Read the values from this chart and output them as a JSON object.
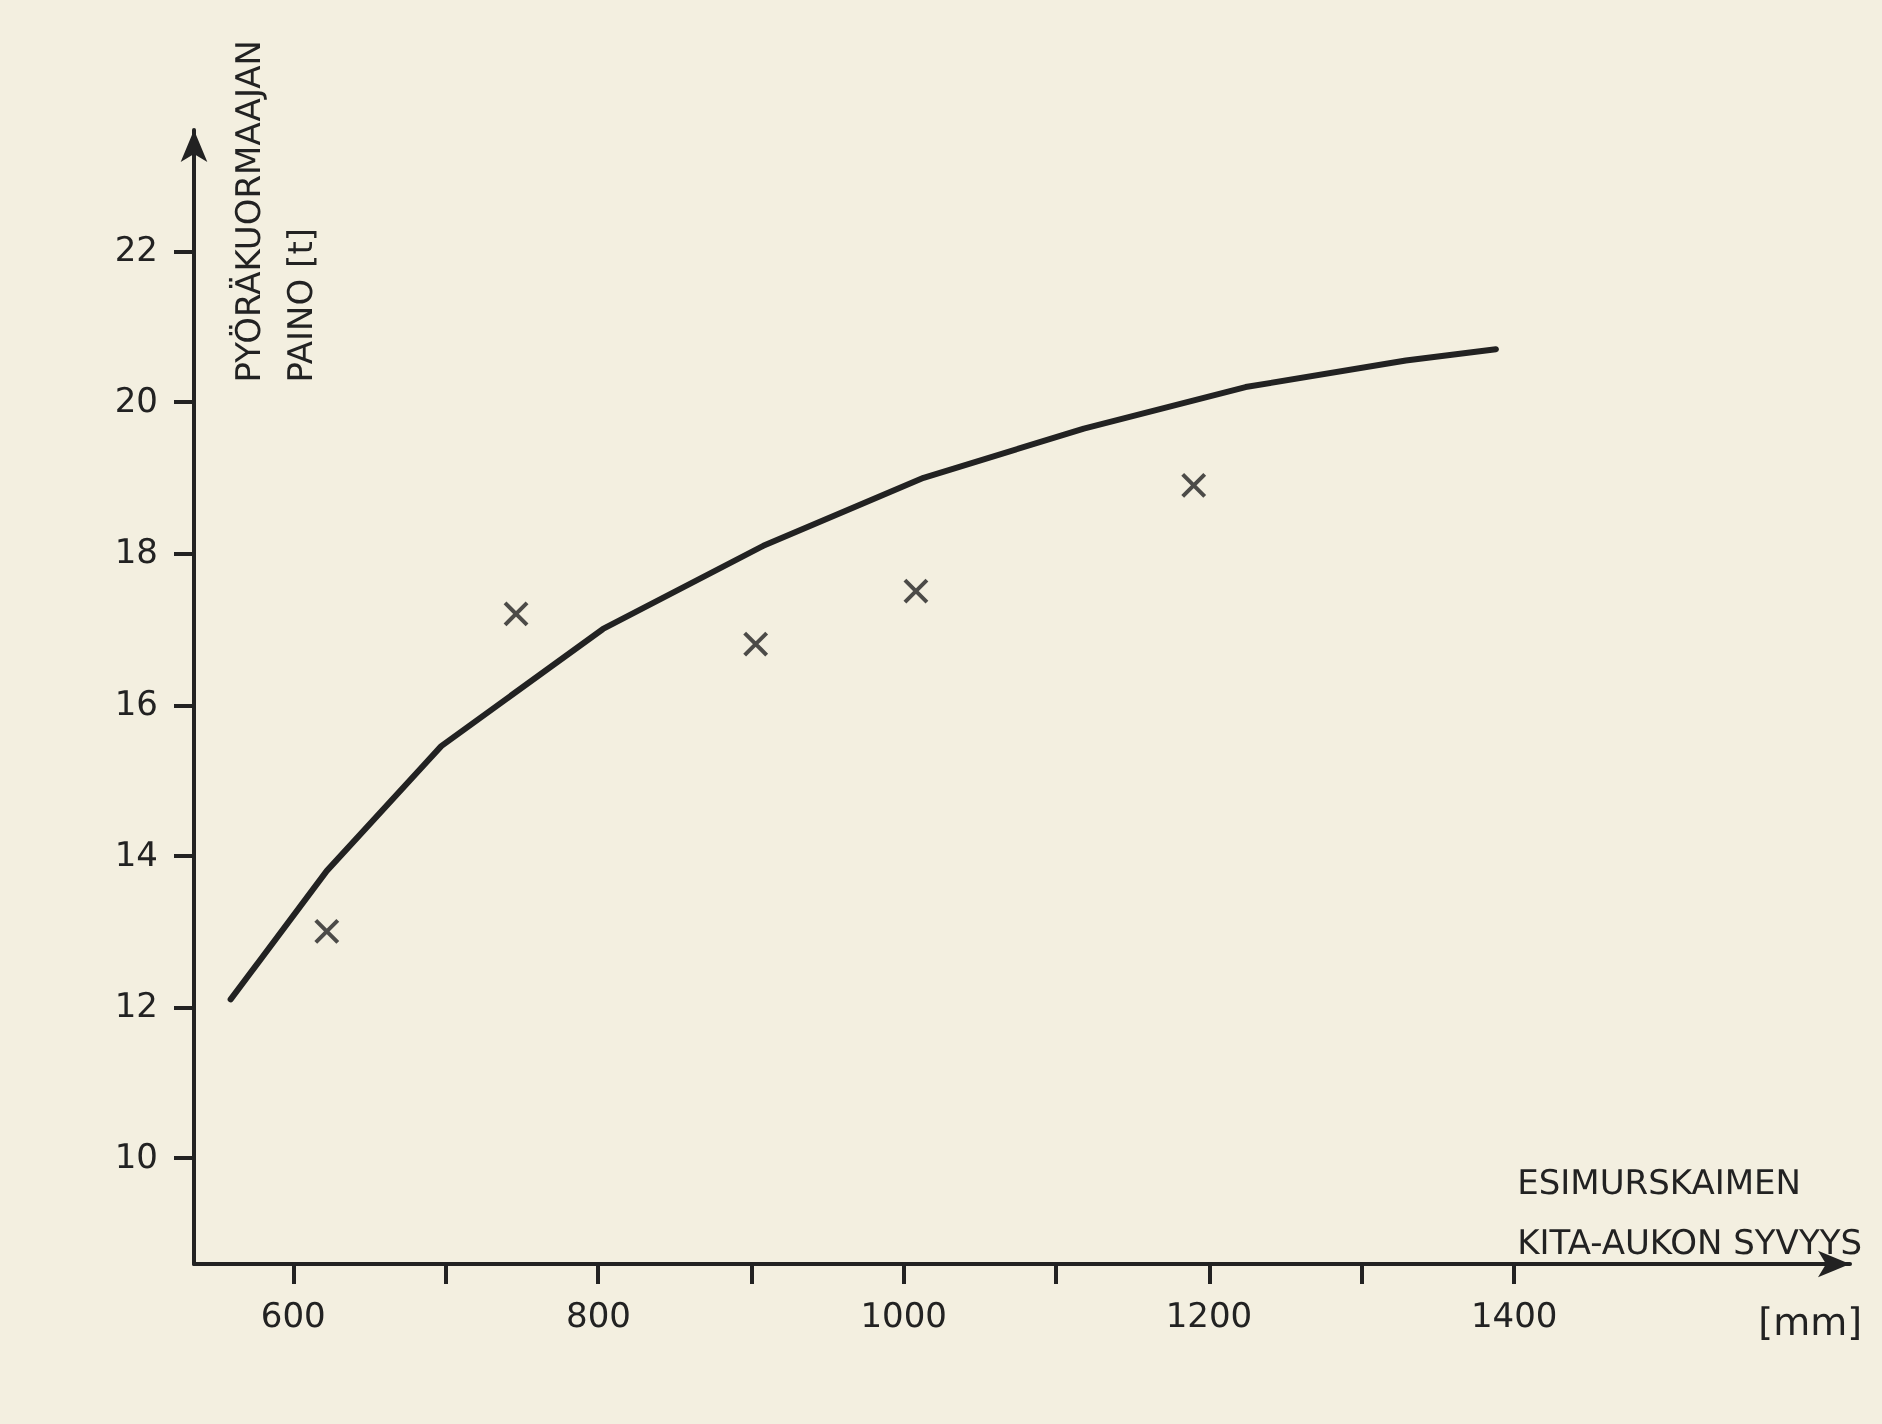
{
  "chart_data": {
    "type": "scatter",
    "xlabel": "ESIMURSKAIMEN\nKITA-AUKON SYVYYS",
    "ylabel": "PYÖRÄKUORMAAJAN\nPAINO [t]",
    "annotations": [
      "[mm]"
    ],
    "series": [
      {
        "color": "#222222",
        "marker": "cross",
        "x": [
          622,
          746,
          903,
          1008,
          1190
        ],
        "values": [
          13.0,
          17.2,
          16.8,
          17.5,
          18.9
        ]
      },
      {
        "type": "line",
        "color": "#222222",
        "marker": "none",
        "line_style": "solid",
        "x": [
          559,
          622,
          697,
          803,
          908,
          1013,
          1118,
          1224,
          1329,
          1388
        ],
        "values": [
          12.1,
          13.8,
          15.45,
          17.0,
          18.1,
          19.0,
          19.65,
          20.2,
          20.55,
          20.7
        ]
      }
    ],
    "xlim": [
      535,
      1620
    ],
    "xticks": [
      600,
      {
        "value": 700,
        "label": null
      },
      800,
      {
        "value": 900,
        "label": null
      },
      1000,
      {
        "value": 1100,
        "label": null
      },
      1200,
      {
        "value": 1300,
        "label": null
      },
      1400
    ],
    "ylim": [
      8.6,
      23.6
    ],
    "yticks": [
      10,
      12,
      14,
      16,
      18,
      20,
      22
    ],
    "grid": false
  }
}
